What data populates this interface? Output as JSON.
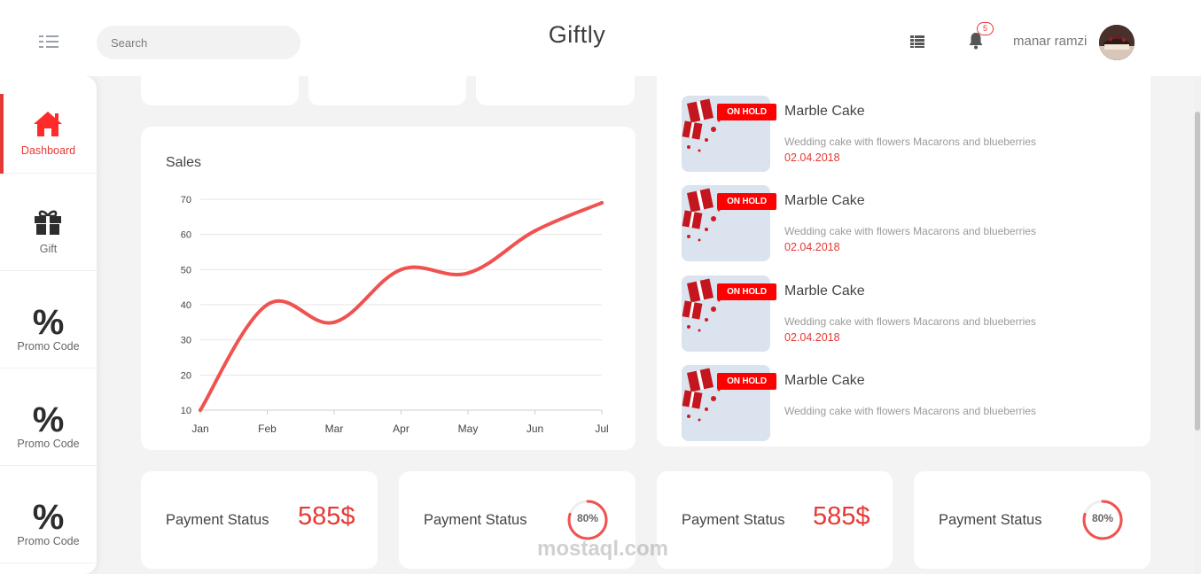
{
  "header": {
    "brand": "Giftly",
    "search_placeholder": "Search",
    "notification_count": "5",
    "username": "manar ramzi"
  },
  "sidebar": {
    "items": [
      {
        "label": "Dashboard",
        "icon": "home-icon",
        "active": true
      },
      {
        "label": "Gift",
        "icon": "gift-icon"
      },
      {
        "label": "Promo Code",
        "icon": "percent-icon"
      },
      {
        "label": "Promo Code",
        "icon": "percent-icon"
      },
      {
        "label": "Promo Code",
        "icon": "percent-icon"
      }
    ]
  },
  "chart_data": {
    "type": "line",
    "title": "Sales",
    "categories": [
      "Jan",
      "Feb",
      "Mar",
      "Apr",
      "May",
      "Jun",
      "Jul"
    ],
    "values": [
      10,
      40,
      35,
      50,
      49,
      61,
      69
    ],
    "yticks": [
      10,
      20,
      30,
      40,
      50,
      60,
      70
    ],
    "ylim": [
      10,
      70
    ],
    "color": "#ef5350",
    "grid": true
  },
  "orders": [
    {
      "status": "ON HOLD",
      "title": "Marble Cake",
      "desc": "Wedding cake with flowers Macarons and blueberries",
      "date": "02.04.2018"
    },
    {
      "status": "ON HOLD",
      "title": "Marble Cake",
      "desc": "Wedding cake with flowers Macarons and blueberries",
      "date": "02.04.2018"
    },
    {
      "status": "ON HOLD",
      "title": "Marble Cake",
      "desc": "Wedding cake with flowers Macarons and blueberries",
      "date": "02.04.2018"
    },
    {
      "status": "ON HOLD",
      "title": "Marble Cake",
      "desc": "Wedding cake with flowers Macarons and blueberries",
      "date": ""
    }
  ],
  "payments": [
    {
      "label": "Payment Status",
      "value": "585$"
    },
    {
      "label": "Payment Status",
      "percent": "80%",
      "progress": 0.8
    },
    {
      "label": "Payment Status",
      "value": "585$"
    },
    {
      "label": "Payment Status",
      "percent": "80%",
      "progress": 0.8
    }
  ],
  "watermark": "mostaql.com",
  "colors": {
    "accent": "#e53935",
    "badge": "#ff0000"
  }
}
